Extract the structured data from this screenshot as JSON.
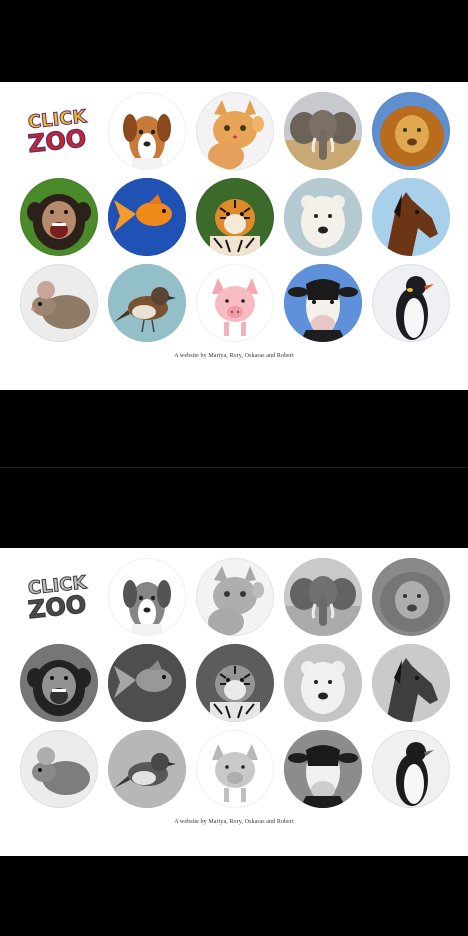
{
  "logo": {
    "line1": "CLICK",
    "line2": "ZOO"
  },
  "credit": "A website by Mariya, Rory, Oskaras and Robert",
  "animals": [
    {
      "name": "dog"
    },
    {
      "name": "cat"
    },
    {
      "name": "elephant"
    },
    {
      "name": "lion"
    },
    {
      "name": "chimpanzee"
    },
    {
      "name": "goldfish"
    },
    {
      "name": "tiger"
    },
    {
      "name": "polar-bear"
    },
    {
      "name": "horse"
    },
    {
      "name": "mouse"
    },
    {
      "name": "sparrow"
    },
    {
      "name": "pig"
    },
    {
      "name": "cow"
    },
    {
      "name": "penguin"
    }
  ],
  "colors": {
    "logo_red": "#c8281e",
    "logo_yellow": "#f3c316",
    "logo_outline": "#5a2a8a"
  }
}
